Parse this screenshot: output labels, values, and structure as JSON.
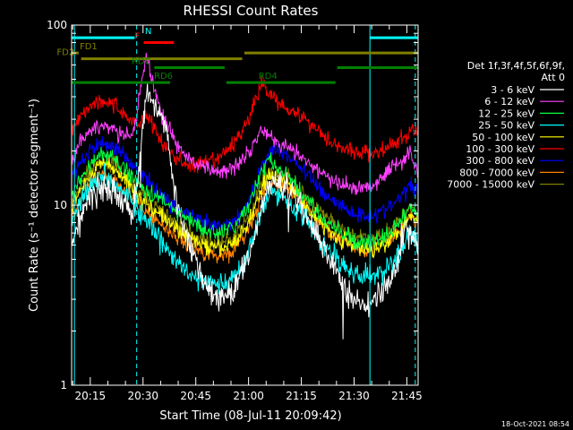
{
  "chart_data": {
    "type": "line",
    "title": "RHESSI Count Rates",
    "xlabel": "Start Time (08-Jul-11 20:09:42)",
    "ylabel": "Count Rate (s⁻¹ detector segment⁻¹)",
    "ylog": true,
    "ylim": [
      1,
      100
    ],
    "y_ticks": [
      {
        "value": 1,
        "label": "1"
      },
      {
        "value": 10,
        "label": "10"
      },
      {
        "value": 100,
        "label": "100"
      }
    ],
    "x_ticks": [
      "20:15",
      "20:30",
      "20:45",
      "21:00",
      "21:15",
      "21:30",
      "21:45"
    ],
    "x_tick_minutes": [
      15,
      30,
      45,
      60,
      75,
      90,
      105
    ],
    "xlim_minutes": [
      9.7,
      108.2
    ],
    "timestamp": "18-Oct-2021 08:54",
    "legend_header": [
      "Det 1f,3f,4f,5f,6f,9f,",
      "Att 0"
    ],
    "series": [
      {
        "name": "3 - 6 keV",
        "color": "#ffffff",
        "x": [
          9.7,
          12,
          15,
          18,
          21,
          24,
          27,
          28.5,
          30,
          31.3,
          33,
          35,
          37,
          39,
          41,
          44,
          47,
          50,
          53,
          56,
          59,
          62,
          64,
          66,
          68,
          71,
          74,
          77,
          80,
          83,
          86,
          89,
          92,
          95,
          98,
          101,
          103,
          104.5,
          105.5,
          107,
          108.2
        ],
        "y": [
          6,
          8.5,
          11,
          12.5,
          12,
          10.5,
          9,
          14,
          30,
          42,
          36,
          30,
          24,
          12,
          8,
          5.5,
          3.8,
          3.2,
          3.1,
          3.4,
          4.5,
          7,
          10.5,
          13,
          13.5,
          12.5,
          10.5,
          8.5,
          6.5,
          5,
          3.8,
          3.2,
          2.8,
          2.9,
          3.4,
          4.2,
          5.5,
          8,
          7,
          6.5,
          5.5
        ]
      },
      {
        "name": "6 - 12 keV",
        "color": "#ff40ff",
        "x": [
          9.7,
          12,
          15,
          18,
          21,
          24,
          27,
          28.5,
          30,
          31,
          31.5,
          32.5,
          34,
          36,
          38,
          41,
          44,
          47,
          50,
          53,
          56,
          59,
          62,
          64,
          66,
          68,
          71,
          74,
          77,
          80,
          83,
          86,
          89,
          92,
          95,
          98,
          101,
          104,
          106,
          107,
          108.2
        ],
        "y": [
          17,
          22,
          26,
          28,
          27,
          24,
          24,
          35,
          55,
          68,
          62,
          50,
          38,
          30,
          25,
          20,
          17.5,
          16,
          15.5,
          15.5,
          16.5,
          19,
          23,
          27,
          24,
          23,
          21,
          19,
          17,
          15.5,
          14,
          13,
          12.5,
          12.5,
          13,
          14.5,
          16.5,
          18,
          20,
          17,
          15
        ]
      },
      {
        "name": "12 - 25 keV",
        "color": "#00ff40",
        "x": [
          9.7,
          12,
          15,
          18,
          21,
          24,
          27,
          30,
          33,
          36,
          39,
          42,
          45,
          48,
          51,
          54,
          57,
          60,
          62,
          64,
          66,
          68,
          71,
          74,
          77,
          80,
          83,
          86,
          89,
          92,
          95,
          98,
          101,
          104,
          106,
          107,
          108.2
        ],
        "y": [
          11,
          14,
          17,
          19,
          18.5,
          16.5,
          14.5,
          12.5,
          11.5,
          10.5,
          9.5,
          8.5,
          7.8,
          7.2,
          7,
          7.2,
          8,
          10,
          12.5,
          16,
          18,
          16,
          14.5,
          12.5,
          10.5,
          9,
          7.8,
          7,
          6.5,
          6.2,
          6.2,
          6.5,
          7.2,
          8.5,
          10,
          9,
          8.5
        ]
      },
      {
        "name": "25 - 50 keV",
        "color": "#00ffff",
        "x": [
          9.7,
          12,
          15,
          18,
          21,
          24,
          27,
          30,
          33,
          36,
          39,
          42,
          45,
          48,
          51,
          54,
          57,
          60,
          62,
          64,
          66,
          68,
          71,
          74,
          77,
          80,
          83,
          86,
          89,
          92,
          95,
          98,
          101,
          104,
          106,
          107,
          108.2
        ],
        "y": [
          8,
          10.5,
          13,
          14.5,
          14,
          12.5,
          10.5,
          8.5,
          7,
          6,
          5,
          4.3,
          3.9,
          3.7,
          3.6,
          3.7,
          4.2,
          5.5,
          7.5,
          10,
          12,
          11.5,
          10.5,
          9.5,
          8,
          6.5,
          5.5,
          4.8,
          4.3,
          4,
          4,
          4.3,
          4.8,
          5.8,
          7,
          6.5,
          6
        ]
      },
      {
        "name": "50 - 100 keV",
        "color": "#ffff00",
        "x": [
          9.7,
          12,
          15,
          18,
          21,
          24,
          27,
          30,
          33,
          36,
          39,
          42,
          45,
          48,
          51,
          54,
          57,
          60,
          62,
          64,
          66,
          68,
          71,
          74,
          77,
          80,
          83,
          86,
          89,
          92,
          95,
          98,
          101,
          104,
          106,
          107,
          108.2
        ],
        "y": [
          9.5,
          12,
          15,
          17,
          16.5,
          14.5,
          12.5,
          10.5,
          9.5,
          8.5,
          7.5,
          6.8,
          6.3,
          5.9,
          5.7,
          5.9,
          6.5,
          8,
          10,
          13,
          15,
          14,
          13,
          11.5,
          9.5,
          8.2,
          7.2,
          6.5,
          6,
          5.7,
          5.7,
          6,
          6.7,
          7.8,
          9,
          8.5,
          8
        ]
      },
      {
        "name": "100 - 300 keV",
        "color": "#ff0000",
        "x": [
          9.7,
          12,
          15,
          18,
          21,
          24,
          27,
          29,
          30.5,
          32,
          34,
          36,
          39,
          42,
          45,
          48,
          51,
          54,
          57,
          60,
          62,
          64,
          66,
          68,
          71,
          74,
          77,
          80,
          83,
          86,
          89,
          92,
          95,
          98,
          101,
          104,
          106,
          107,
          108.2
        ],
        "y": [
          27,
          31,
          36,
          38,
          37,
          33,
          29,
          28,
          32,
          30,
          25,
          21,
          18.5,
          17,
          16.5,
          17,
          18,
          20,
          24,
          30,
          38,
          48,
          42,
          38,
          35,
          32,
          29,
          26,
          23,
          21,
          20,
          19.5,
          19.5,
          20,
          21.5,
          23.5,
          25.5,
          26,
          25
        ]
      },
      {
        "name": "300 - 800 keV",
        "color": "#0000ff",
        "x": [
          9.7,
          12,
          15,
          18,
          21,
          24,
          27,
          30,
          33,
          36,
          39,
          42,
          45,
          48,
          51,
          54,
          57,
          60,
          62,
          64,
          66,
          68,
          71,
          74,
          77,
          80,
          83,
          86,
          89,
          92,
          95,
          98,
          101,
          104,
          106,
          107,
          108.2
        ],
        "y": [
          14,
          17,
          20,
          22,
          21.5,
          19.5,
          17,
          14.5,
          12.5,
          11,
          9.8,
          9,
          8.3,
          7.8,
          7.6,
          7.8,
          8.6,
          10.5,
          13,
          17,
          20,
          20,
          19,
          17,
          14.5,
          12.5,
          11,
          10,
          9.2,
          8.8,
          8.8,
          9.2,
          10,
          11.5,
          13,
          12.5,
          12
        ]
      },
      {
        "name": "800 - 7000 keV",
        "color": "#ff8000",
        "x": [
          9.7,
          12,
          15,
          18,
          21,
          24,
          27,
          30,
          33,
          36,
          39,
          42,
          45,
          48,
          51,
          54,
          57,
          60,
          62,
          64,
          66,
          68,
          71,
          74,
          77,
          80,
          83,
          86,
          89,
          92,
          95,
          98,
          101,
          104,
          106,
          107,
          108.2
        ],
        "y": [
          8.5,
          10.5,
          13,
          14.5,
          14.2,
          12.8,
          11,
          9.5,
          8.5,
          7.6,
          6.8,
          6.2,
          5.7,
          5.4,
          5.2,
          5.4,
          6,
          7.3,
          9,
          11.5,
          13,
          13,
          12.5,
          11.2,
          9.5,
          8.2,
          7.2,
          6.5,
          6,
          5.7,
          5.7,
          6,
          6.6,
          7.6,
          8.8,
          8.4,
          8
        ]
      },
      {
        "name": "7000 - 15000 keV",
        "color": "#808000",
        "x": [
          9.7,
          12,
          15,
          18,
          21,
          24,
          27,
          30,
          33,
          36,
          39,
          42,
          45,
          48,
          51,
          54,
          57,
          60,
          62,
          64,
          66,
          68,
          71,
          74,
          77,
          80,
          83,
          86,
          89,
          92,
          95,
          98,
          101,
          104,
          106,
          107,
          108.2
        ],
        "y": [
          10,
          12.5,
          15.5,
          17.2,
          17,
          15.2,
          13.2,
          11.2,
          10,
          9,
          8,
          7.3,
          6.7,
          6.3,
          6.1,
          6.3,
          7,
          8.5,
          10.5,
          13.5,
          15,
          14.8,
          14,
          12.5,
          10.8,
          9.3,
          8.2,
          7.4,
          6.8,
          6.5,
          6.5,
          6.8,
          7.5,
          8.6,
          10,
          9.5,
          9
        ]
      }
    ],
    "flag_bars": [
      {
        "label": "N",
        "color": "#00ffff",
        "y": 85,
        "x0": 9.7,
        "x1": 27.6,
        "label_x": 31.5
      },
      {
        "label": "N",
        "color": "#00ffff",
        "y": 85,
        "x0": 94.5,
        "x1": 108.2,
        "label_x": null
      },
      {
        "label": "F",
        "color": "#ff0000",
        "y": 80,
        "x0": 30.2,
        "x1": 38.8,
        "label_x": 28.3
      },
      {
        "label": "FD1",
        "color": "#808000",
        "y": 70,
        "x0": 9.7,
        "x1": 11.7,
        "label_x": 14.5
      },
      {
        "label": "FD2",
        "color": "#808000",
        "y": 65,
        "x0": 12.4,
        "x1": 58.2,
        "label_x": 8.0
      },
      {
        "label": "FD2",
        "color": "#808000",
        "y": 70,
        "x0": 58.8,
        "x1": 108.2,
        "label_x": null
      },
      {
        "label": "RDC",
        "color": "#008000",
        "y": 58,
        "x0": 33.2,
        "x1": 53.2,
        "label_x": 29.5
      },
      {
        "label": "RDC",
        "color": "#008000",
        "y": 58,
        "x0": 85.2,
        "x1": 108.2,
        "label_x": null
      },
      {
        "label": "RD6",
        "color": "#008000",
        "y": 48,
        "x0": 9.7,
        "x1": 37.7,
        "label_x": 35.8
      },
      {
        "label": "RD4",
        "color": "#008000",
        "y": 48,
        "x0": 53.7,
        "x1": 84.7,
        "label_x": 65.5
      }
    ],
    "vlines": [
      {
        "x": 10.5,
        "color": "#00ffff",
        "style": "solid"
      },
      {
        "x": 28.2,
        "color": "#00ffff",
        "style": "dashed"
      },
      {
        "x": 94.5,
        "color": "#00ffff",
        "style": "solid"
      },
      {
        "x": 107.4,
        "color": "#00ffff",
        "style": "dashed"
      }
    ]
  }
}
